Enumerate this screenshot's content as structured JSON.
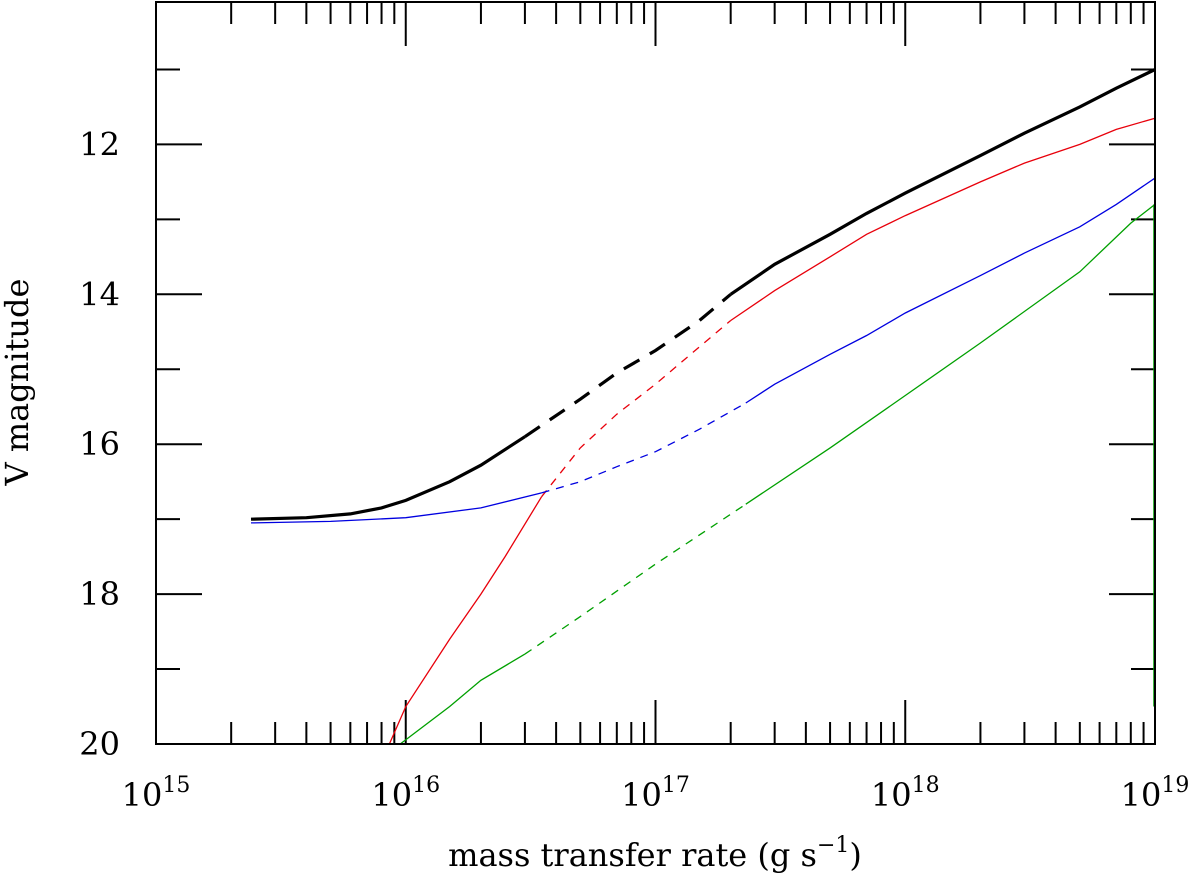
{
  "chart_data": {
    "type": "line",
    "xlabel_text": "mass transfer rate (g s",
    "xlabel_sup": "−1",
    "xlabel_close": ")",
    "ylabel": "V magnitude",
    "x_scale": "log",
    "xlim": [
      1000000000000000.0,
      1e+19
    ],
    "ylim": [
      20,
      10.1
    ],
    "y_inverted": true,
    "x_tick_labels": [
      {
        "value": 1000000000000000.0,
        "base": "10",
        "exp": "15"
      },
      {
        "value": 1e+16,
        "base": "10",
        "exp": "16"
      },
      {
        "value": 1e+17,
        "base": "10",
        "exp": "17"
      },
      {
        "value": 1e+18,
        "base": "10",
        "exp": "18"
      },
      {
        "value": 1e+19,
        "base": "10",
        "exp": "19"
      }
    ],
    "y_tick_labels": [
      "12",
      "14",
      "16",
      "18",
      "20"
    ],
    "y_tick_values": [
      12,
      14,
      16,
      18,
      20
    ],
    "y_minor_values": [
      11,
      13,
      15,
      17,
      19
    ],
    "legend": "none",
    "grid": false,
    "series": [
      {
        "color": "#000000",
        "style": "solid thick; dashed for 3e16 to 2e17",
        "points": [
          [
            2400000000000000.0,
            17.0
          ],
          [
            4000000000000000.0,
            16.98
          ],
          [
            6000000000000000.0,
            16.93
          ],
          [
            8000000000000000.0,
            16.85
          ],
          [
            1e+16,
            16.75
          ],
          [
            1.5e+16,
            16.5
          ],
          [
            2e+16,
            16.28
          ],
          [
            3e+16,
            15.9
          ],
          [
            5e+16,
            15.4
          ],
          [
            7e+16,
            15.05
          ],
          [
            1e+17,
            14.75
          ],
          [
            1.5e+17,
            14.35
          ],
          [
            2e+17,
            14.0
          ],
          [
            3e+17,
            13.6
          ],
          [
            5e+17,
            13.2
          ],
          [
            7e+17,
            12.92
          ],
          [
            1e+18,
            12.65
          ],
          [
            2e+18,
            12.15
          ],
          [
            3e+18,
            11.85
          ],
          [
            5e+18,
            11.5
          ],
          [
            7e+18,
            11.25
          ],
          [
            1e+19,
            11.0
          ]
        ]
      },
      {
        "color": "#e8000b",
        "style": "solid thin; dashed for 3.5e16 to 2e17",
        "points": [
          [
            8600000000000000.0,
            20.0
          ],
          [
            1e+16,
            19.5
          ],
          [
            1.5e+16,
            18.6
          ],
          [
            2e+16,
            18.0
          ],
          [
            2.5e+16,
            17.5
          ],
          [
            3.5e+16,
            16.7
          ],
          [
            5e+16,
            16.05
          ],
          [
            7e+16,
            15.6
          ],
          [
            1e+17,
            15.2
          ],
          [
            1.5e+17,
            14.7
          ],
          [
            2e+17,
            14.35
          ],
          [
            3e+17,
            13.95
          ],
          [
            5e+17,
            13.5
          ],
          [
            7e+17,
            13.2
          ],
          [
            1e+18,
            12.95
          ],
          [
            2e+18,
            12.5
          ],
          [
            3e+18,
            12.25
          ],
          [
            5e+18,
            12.0
          ],
          [
            7e+18,
            11.8
          ],
          [
            1e+19,
            11.65
          ]
        ]
      },
      {
        "color": "#0000e0",
        "style": "solid thin; dashed for 3.5e16 to 2.3e17",
        "points": [
          [
            2400000000000000.0,
            17.05
          ],
          [
            5000000000000000.0,
            17.03
          ],
          [
            1e+16,
            16.98
          ],
          [
            2e+16,
            16.85
          ],
          [
            3.5e+16,
            16.65
          ],
          [
            5e+16,
            16.5
          ],
          [
            7e+16,
            16.3
          ],
          [
            1e+17,
            16.1
          ],
          [
            1.5e+17,
            15.8
          ],
          [
            2.3e+17,
            15.45
          ],
          [
            3e+17,
            15.2
          ],
          [
            5e+17,
            14.8
          ],
          [
            7e+17,
            14.55
          ],
          [
            1e+18,
            14.25
          ],
          [
            2e+18,
            13.75
          ],
          [
            3e+18,
            13.45
          ],
          [
            5e+18,
            13.1
          ],
          [
            7e+18,
            12.8
          ],
          [
            1e+19,
            12.45
          ]
        ]
      },
      {
        "color": "#00a000",
        "style": "solid thin; dashed for 3e16 to 2.3e17",
        "points": [
          [
            9500000000000000.0,
            20.0
          ],
          [
            1.5e+16,
            19.5
          ],
          [
            2e+16,
            19.15
          ],
          [
            3e+16,
            18.8
          ],
          [
            5e+16,
            18.3
          ],
          [
            1e+17,
            17.6
          ],
          [
            2.3e+17,
            16.8
          ],
          [
            5e+17,
            16.05
          ],
          [
            1e+18,
            15.35
          ],
          [
            2e+18,
            14.65
          ],
          [
            5e+18,
            13.7
          ],
          [
            8e+18,
            13.05
          ],
          [
            1e+19,
            12.8
          ]
        ]
      }
    ]
  }
}
